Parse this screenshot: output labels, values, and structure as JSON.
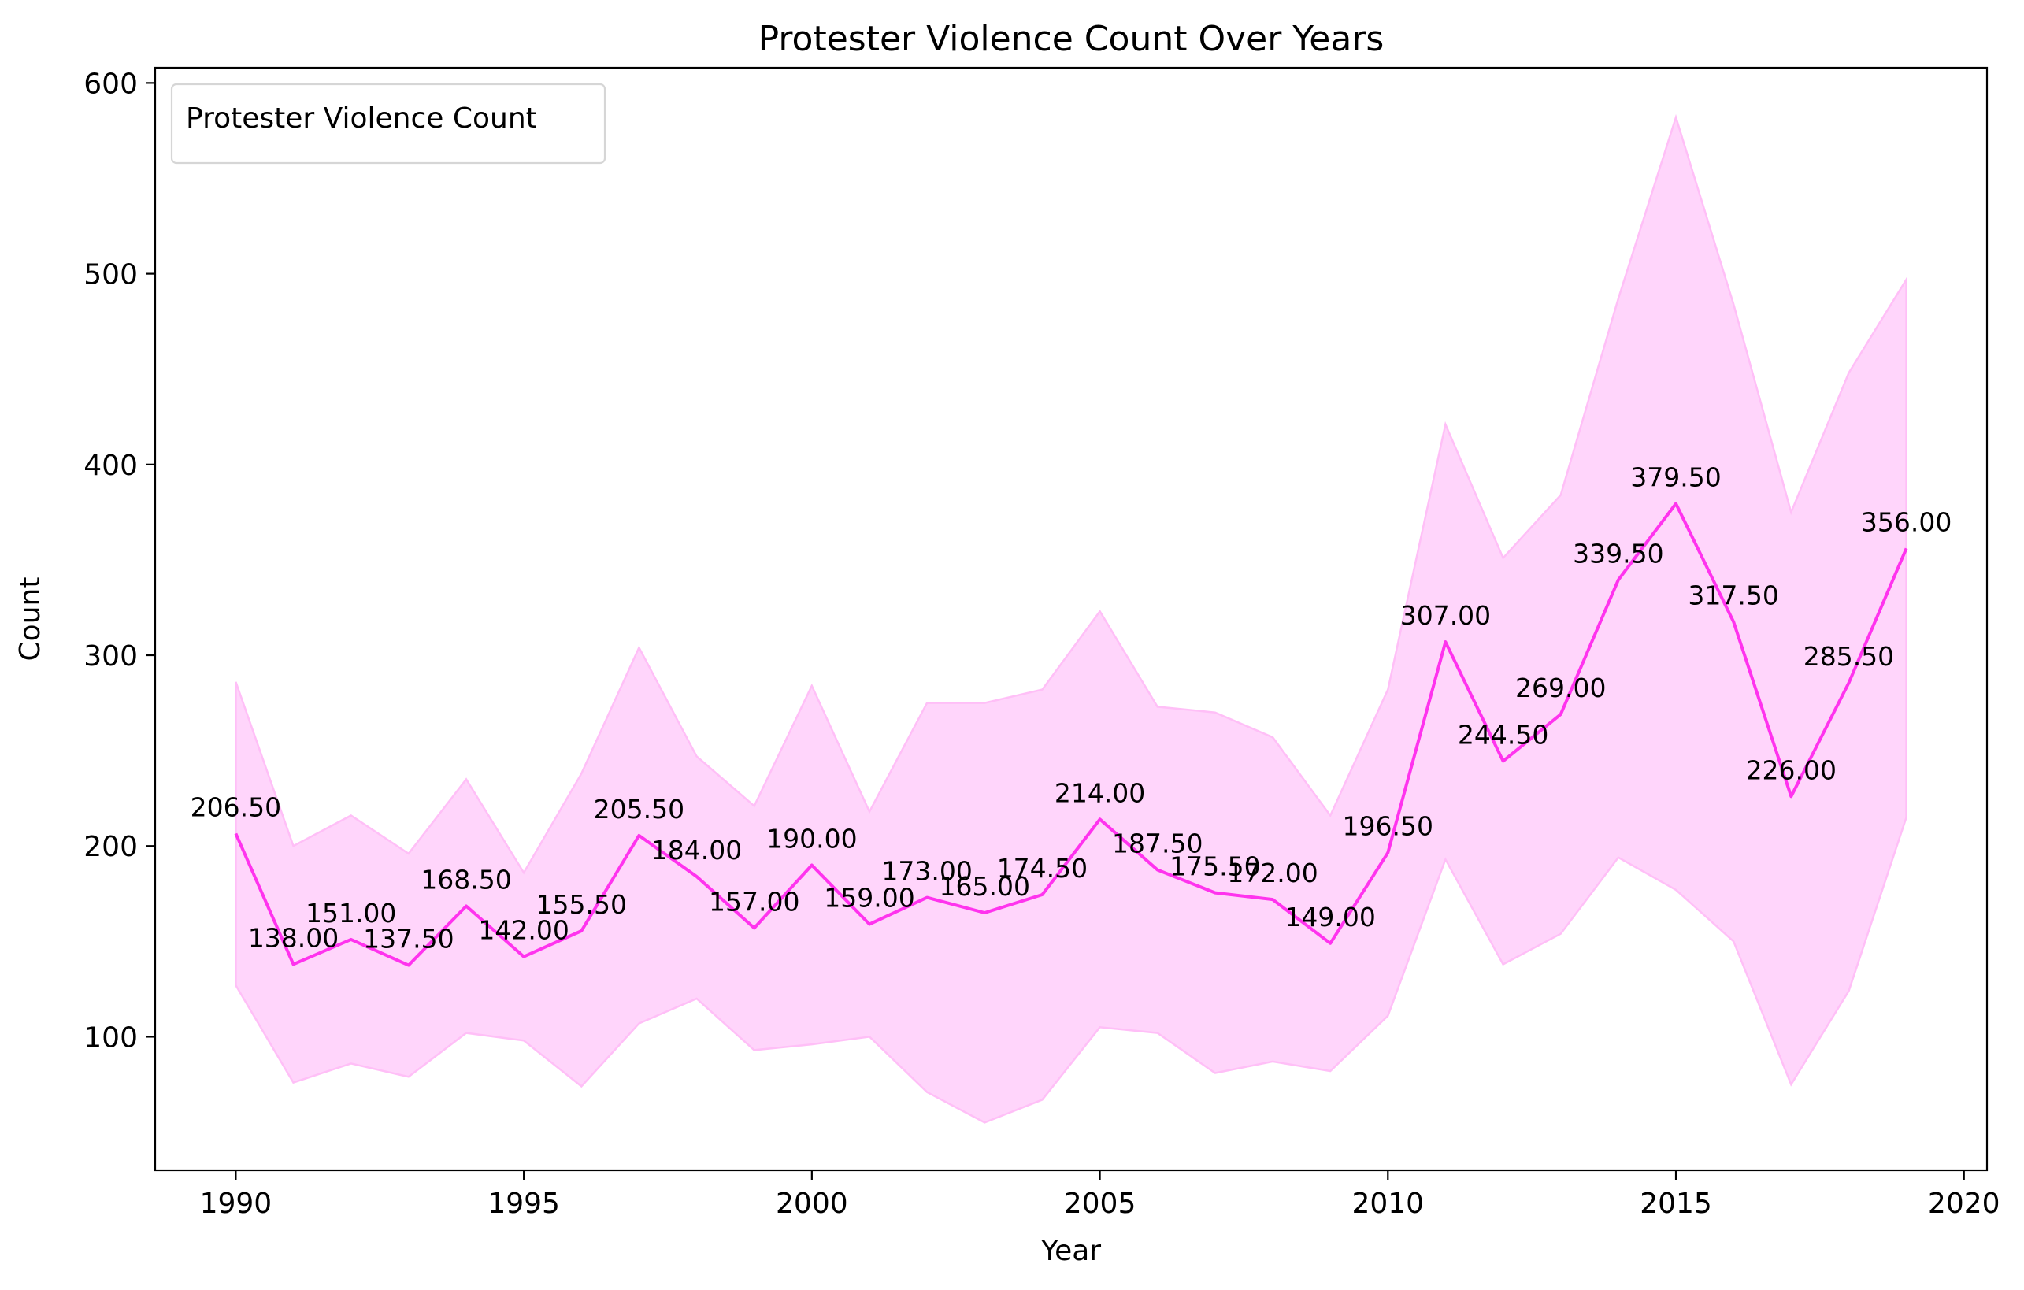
{
  "chart_data": {
    "type": "line",
    "title": "Protester Violence Count Over Years",
    "xlabel": "Year",
    "ylabel": "Count",
    "xlim": [
      1988.6,
      2020.4
    ],
    "ylim": [
      30,
      608
    ],
    "x_ticks": [
      1990,
      1995,
      2000,
      2005,
      2010,
      2015,
      2020
    ],
    "y_ticks": [
      100,
      200,
      300,
      400,
      500,
      600
    ],
    "grid": false,
    "legend": {
      "placement": "top-left",
      "title": "Protester Violence Count"
    },
    "colors": {
      "line": "#ff33ee",
      "band": "#ffd5fb",
      "band_edge": "#ffbff7"
    },
    "x": [
      1990,
      1991,
      1992,
      1993,
      1994,
      1995,
      1996,
      1997,
      1998,
      1999,
      2000,
      2001,
      2002,
      2003,
      2004,
      2005,
      2006,
      2007,
      2008,
      2009,
      2010,
      2011,
      2012,
      2013,
      2014,
      2015,
      2016,
      2017,
      2018,
      2019
    ],
    "series": [
      {
        "values": [
          206.5,
          138.0,
          151.0,
          137.5,
          168.5,
          142.0,
          155.5,
          205.5,
          184.0,
          157.0,
          190.0,
          159.0,
          173.0,
          165.0,
          174.5,
          214.0,
          187.5,
          175.5,
          172.0,
          149.0,
          196.5,
          307.0,
          244.5,
          269.0,
          339.5,
          379.5,
          317.5,
          226.0,
          285.5,
          356.0
        ],
        "band_upper": [
          286,
          200,
          216,
          196,
          235,
          186,
          238,
          304,
          247,
          221,
          284,
          218,
          275,
          275,
          282,
          323,
          273,
          270,
          257,
          216,
          282,
          421,
          351,
          384,
          487,
          582,
          484,
          375,
          448,
          497
        ],
        "band_lower": [
          127,
          76,
          86,
          79,
          102,
          98,
          74,
          107,
          120,
          93,
          96,
          100,
          71,
          55,
          67,
          105,
          102,
          81,
          87,
          82,
          111,
          193,
          138,
          154,
          194,
          177,
          150,
          75,
          124,
          215
        ]
      }
    ],
    "data_labels": [
      "206.50",
      "138.00",
      "151.00",
      "137.50",
      "168.50",
      "142.00",
      "155.50",
      "205.50",
      "184.00",
      "157.00",
      "190.00",
      "159.00",
      "173.00",
      "165.00",
      "174.50",
      "214.00",
      "187.50",
      "175.50",
      "172.00",
      "149.00",
      "196.50",
      "307.00",
      "244.50",
      "269.00",
      "339.50",
      "379.50",
      "317.50",
      "226.00",
      "285.50",
      "356.00"
    ]
  }
}
